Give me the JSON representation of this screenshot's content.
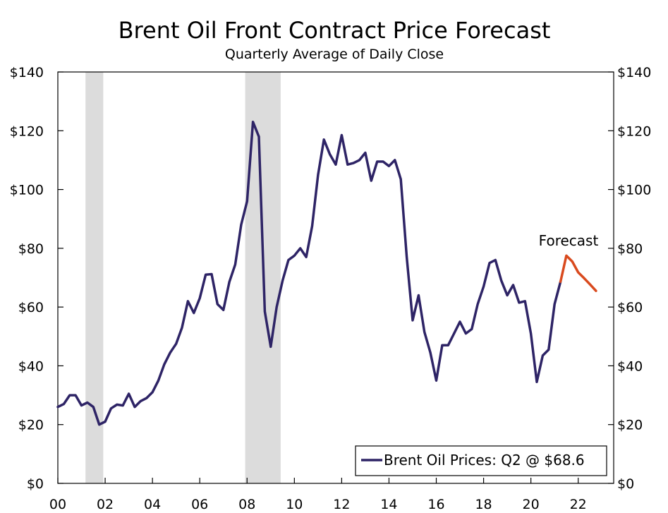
{
  "chart_data": {
    "type": "line",
    "title": "Brent Oil Front Contract Price Forecast",
    "subtitle": "Quarterly Average of Daily Close",
    "xlabel": "",
    "ylabel": "",
    "xlim": [
      2000.0,
      2023.5
    ],
    "ylim": [
      0,
      140
    ],
    "x_ticks": [
      2000,
      2002,
      2004,
      2006,
      2008,
      2010,
      2012,
      2014,
      2016,
      2018,
      2020,
      2022
    ],
    "x_tick_labels": [
      "00",
      "02",
      "04",
      "06",
      "08",
      "10",
      "12",
      "14",
      "16",
      "18",
      "20",
      "22"
    ],
    "y_ticks": [
      0,
      20,
      40,
      60,
      80,
      100,
      120,
      140
    ],
    "y_tick_labels": [
      "$0",
      "$20",
      "$40",
      "$60",
      "$80",
      "$100",
      "$120",
      "$140"
    ],
    "recessions": [
      {
        "start": 2001.17,
        "end": 2001.92
      },
      {
        "start": 2007.92,
        "end": 2009.42
      }
    ],
    "series": [
      {
        "name": "Brent Oil Prices: Q2 @ $68.6",
        "color": "#2e2466",
        "x": [
          2000.0,
          2000.25,
          2000.5,
          2000.75,
          2001.0,
          2001.25,
          2001.5,
          2001.75,
          2002.0,
          2002.25,
          2002.5,
          2002.75,
          2003.0,
          2003.25,
          2003.5,
          2003.75,
          2004.0,
          2004.25,
          2004.5,
          2004.75,
          2005.0,
          2005.25,
          2005.5,
          2005.75,
          2006.0,
          2006.25,
          2006.5,
          2006.75,
          2007.0,
          2007.25,
          2007.5,
          2007.75,
          2008.0,
          2008.25,
          2008.5,
          2008.75,
          2009.0,
          2009.25,
          2009.5,
          2009.75,
          2010.0,
          2010.25,
          2010.5,
          2010.75,
          2011.0,
          2011.25,
          2011.5,
          2011.75,
          2012.0,
          2012.25,
          2012.5,
          2012.75,
          2013.0,
          2013.25,
          2013.5,
          2013.75,
          2014.0,
          2014.25,
          2014.5,
          2014.75,
          2015.0,
          2015.25,
          2015.5,
          2015.75,
          2016.0,
          2016.25,
          2016.5,
          2016.75,
          2017.0,
          2017.25,
          2017.5,
          2017.75,
          2018.0,
          2018.25,
          2018.5,
          2018.75,
          2019.0,
          2019.25,
          2019.5,
          2019.75,
          2020.0,
          2020.25,
          2020.5,
          2020.75,
          2021.0,
          2021.25
        ],
        "values": [
          26,
          27,
          30,
          30,
          26.5,
          27.5,
          26,
          20,
          21,
          25.5,
          26.8,
          26.5,
          30.5,
          26,
          28,
          29,
          31,
          35,
          40.5,
          44.5,
          47.5,
          53,
          62,
          58,
          63,
          71,
          71.2,
          61,
          59,
          68.5,
          74.5,
          88,
          96,
          123,
          118,
          58.5,
          46.5,
          60,
          69,
          76,
          77.5,
          80,
          77,
          87.5,
          105,
          117,
          112,
          108.5,
          118.5,
          108.5,
          109,
          110,
          112.5,
          103,
          109.5,
          109.5,
          108,
          110,
          103.5,
          77,
          55.5,
          64,
          51.5,
          44.5,
          35,
          47,
          47,
          51,
          55,
          51,
          52.5,
          61,
          67,
          75,
          76,
          69,
          64,
          67.5,
          61.5,
          62,
          51,
          34.5,
          43.5,
          45.5,
          61,
          68.6
        ]
      },
      {
        "name": "Forecast",
        "color": "#d94a1e",
        "x": [
          2021.25,
          2021.5,
          2021.75,
          2022.0,
          2022.25,
          2022.5,
          2022.75
        ],
        "values": [
          68.6,
          77.5,
          75.5,
          71.8,
          69.8,
          67.7,
          65.5
        ]
      }
    ],
    "annotation": "Forecast",
    "legend": {
      "label": "Brent Oil Prices: Q2 @ $68.6",
      "placement": "bottom-right"
    }
  }
}
